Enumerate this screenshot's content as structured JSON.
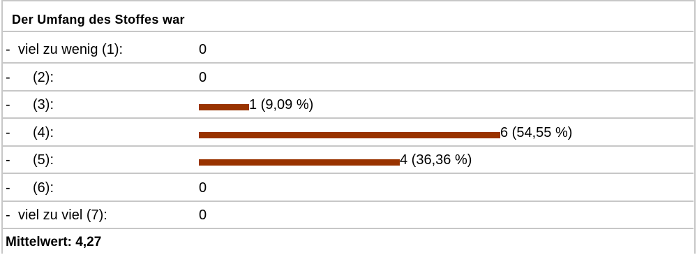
{
  "chart_data": {
    "type": "bar",
    "orientation": "horizontal",
    "title": "Der Umfang des Stoffes war",
    "color": "#993300",
    "categories": [
      "viel zu wenig (1):",
      "(2):",
      "(3):",
      "(4):",
      "(5):",
      "(6):",
      "viel zu viel (7):"
    ],
    "values": [
      0,
      0,
      1,
      6,
      4,
      0,
      0
    ],
    "value_labels": [
      "0",
      "0",
      "1 (9,09 %)",
      "6 (54,55 %)",
      "4 (36,36 %)",
      "0",
      "0"
    ],
    "row_prefix": "-",
    "summary": "Mittelwert: 4,27"
  }
}
